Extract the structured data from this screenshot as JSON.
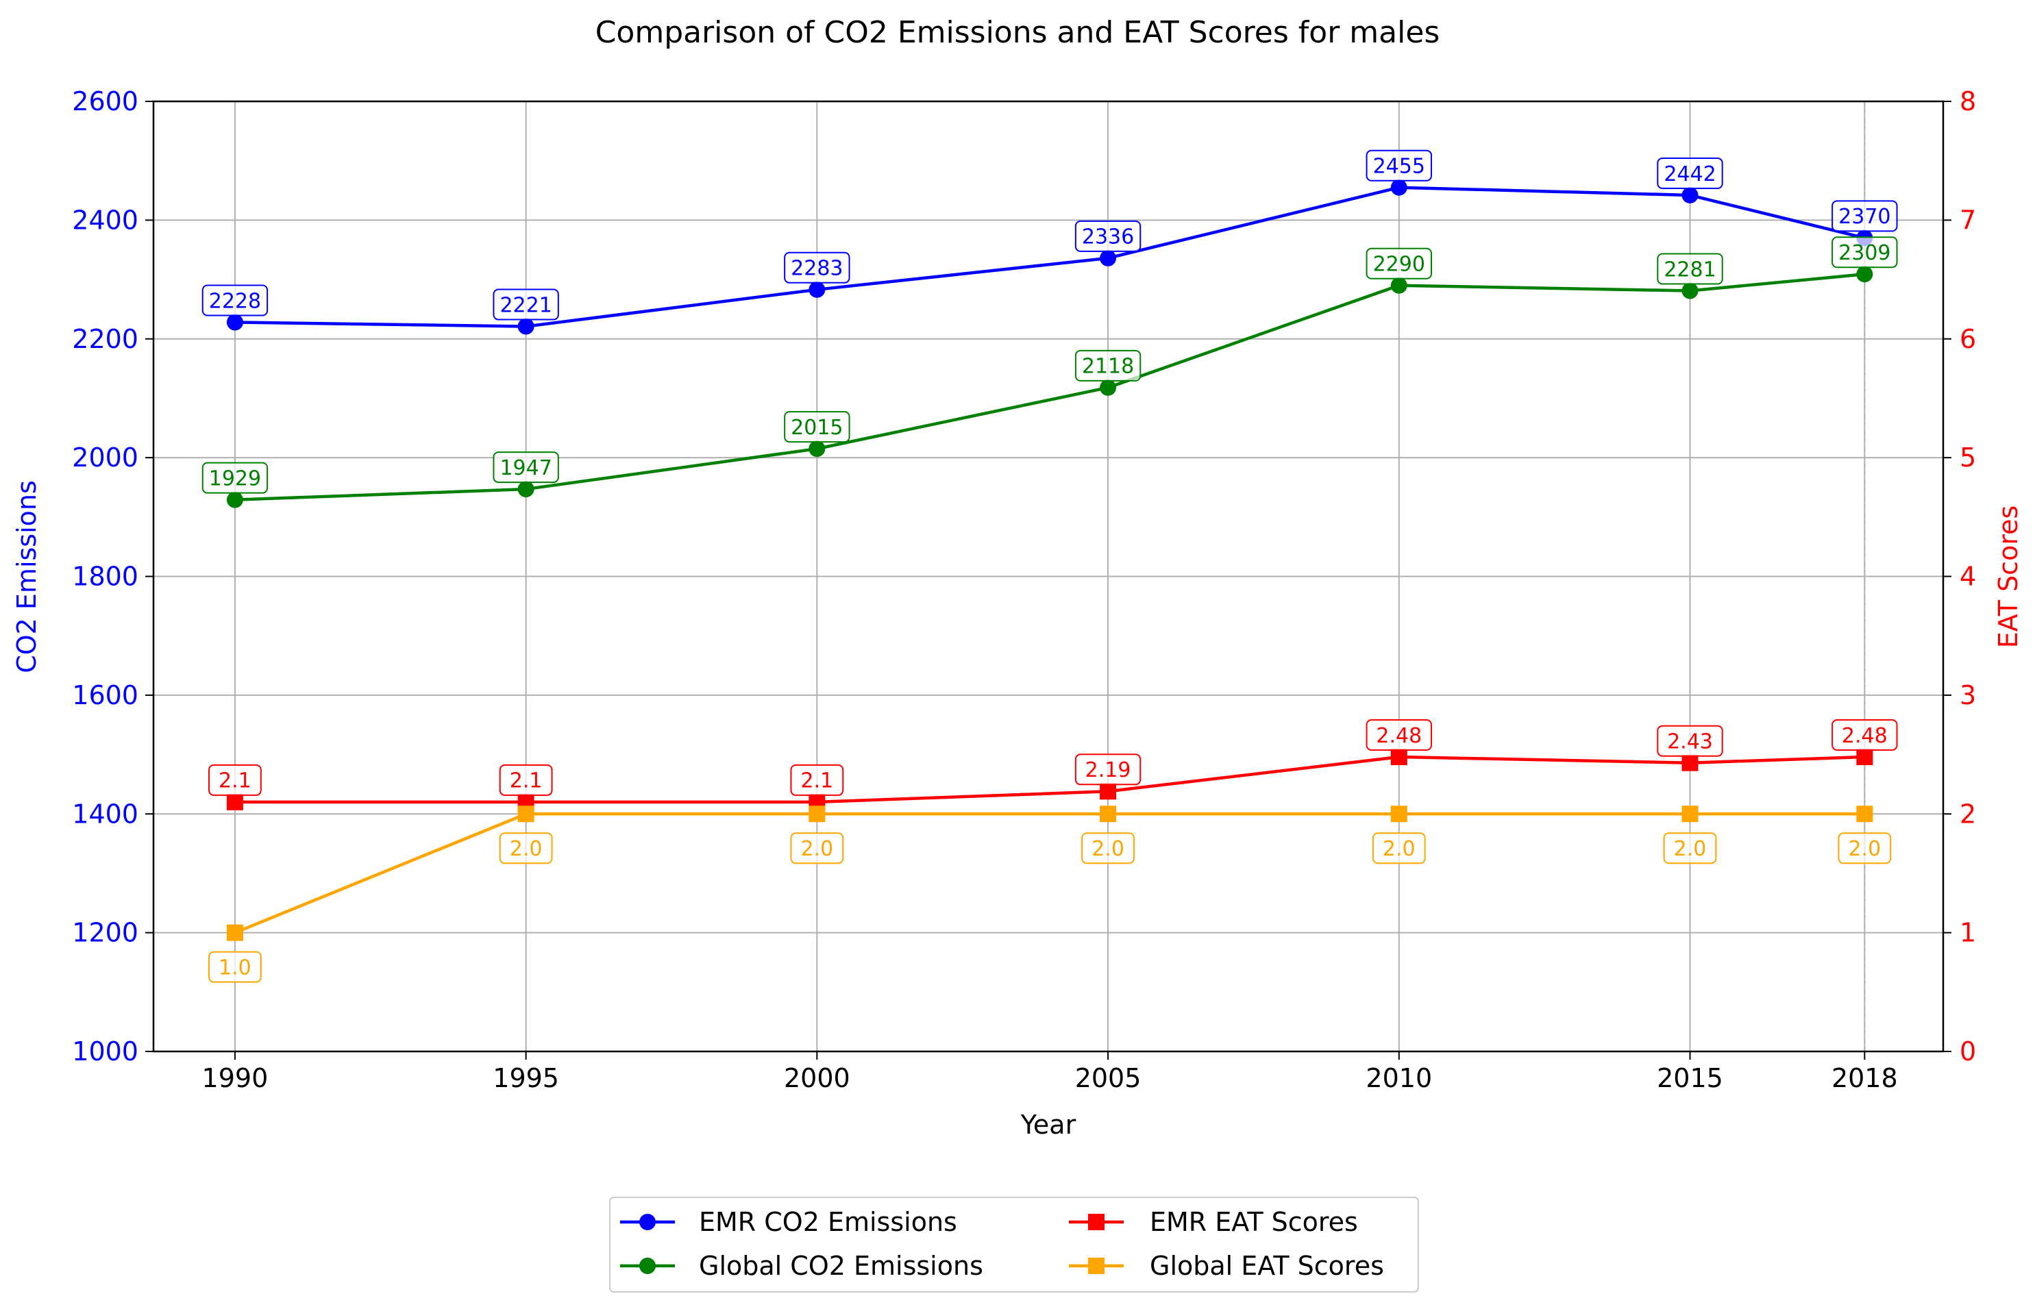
{
  "chart_data": {
    "type": "line",
    "title": "Comparison of CO2 Emissions and EAT Scores for males",
    "xlabel": "Year",
    "ylabel_left": "CO2 Emissions",
    "ylabel_right": "EAT Scores",
    "x": [
      1990,
      1995,
      2000,
      2005,
      2010,
      2015,
      2018
    ],
    "x_ticks": [
      "1990",
      "1995",
      "2000",
      "2005",
      "2010",
      "2015",
      "2018"
    ],
    "ylim_left": [
      1000,
      2600
    ],
    "yticks_left": [
      "1000",
      "1200",
      "1400",
      "1600",
      "1800",
      "2000",
      "2200",
      "2400",
      "2600"
    ],
    "ylim_right": [
      0,
      8
    ],
    "yticks_right": [
      "0",
      "1",
      "2",
      "3",
      "4",
      "5",
      "6",
      "7",
      "8"
    ],
    "grid": true,
    "legend_position": "bottom-center",
    "series": [
      {
        "name": "EMR CO2 Emissions",
        "axis": "left",
        "marker": "circle",
        "color": "#0000ff",
        "values": [
          2228,
          2221,
          2283,
          2336,
          2455,
          2442,
          2370
        ],
        "labels": [
          "2228",
          "2221",
          "2283",
          "2336",
          "2455",
          "2442",
          "2370"
        ]
      },
      {
        "name": "Global CO2 Emissions",
        "axis": "left",
        "marker": "circle",
        "color": "#008000",
        "values": [
          1929,
          1947,
          2015,
          2118,
          2290,
          2281,
          2309
        ],
        "labels": [
          "1929",
          "1947",
          "2015",
          "2118",
          "2290",
          "2281",
          "2309"
        ]
      },
      {
        "name": "EMR EAT Scores",
        "axis": "right",
        "marker": "square",
        "color": "#ff0000",
        "values": [
          2.1,
          2.1,
          2.1,
          2.19,
          2.48,
          2.43,
          2.48
        ],
        "labels": [
          "2.1",
          "2.1",
          "2.1",
          "2.19",
          "2.48",
          "2.43",
          "2.48"
        ]
      },
      {
        "name": "Global EAT Scores",
        "axis": "right",
        "marker": "square",
        "color": "#ffa500",
        "values": [
          1.0,
          2.0,
          2.0,
          2.0,
          2.0,
          2.0,
          2.0
        ],
        "labels": [
          "1.0",
          "2.0",
          "2.0",
          "2.0",
          "2.0",
          "2.0",
          "2.0"
        ]
      }
    ]
  },
  "colors": {
    "left_axis": "#0000ff",
    "right_axis": "#ff0000",
    "grid": "#b0b0b0",
    "text": "#000000"
  }
}
